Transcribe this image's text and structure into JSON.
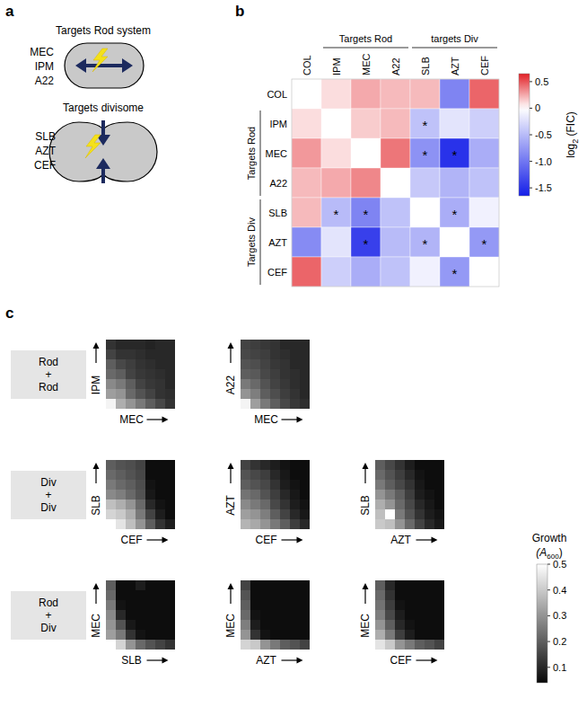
{
  "panel_labels": [
    "a",
    "b",
    "c"
  ],
  "diagram": {
    "rod": {
      "title": "Targets Rod system",
      "drugs": [
        "MEC",
        "IPM",
        "A22"
      ]
    },
    "divisome": {
      "title": "Targets divisome",
      "drugs": [
        "SLB",
        "AZT",
        "CEF"
      ]
    }
  },
  "chart_data": [
    {
      "type": "heatmap",
      "drugs": [
        "COL",
        "IPM",
        "MEC",
        "A22",
        "SLB",
        "AZT",
        "CEF"
      ],
      "column_groups": [
        {
          "label": "Targets Rod",
          "members": [
            "IPM",
            "MEC",
            "A22"
          ]
        },
        {
          "label": "targets Div",
          "members": [
            "SLB",
            "AZT",
            "CEF"
          ]
        }
      ],
      "row_groups": [
        {
          "label": "Targets Rod",
          "members": [
            "IPM",
            "MEC",
            "A22"
          ]
        },
        {
          "label": "Targets Div",
          "members": [
            "SLB",
            "AZT",
            "CEF"
          ]
        }
      ],
      "cells": [
        [
          null,
          0.1,
          0.25,
          0.2,
          0.2,
          -0.9,
          0.45
        ],
        [
          0.1,
          null,
          0.15,
          0.2,
          -0.45,
          -0.2,
          -0.35
        ],
        [
          0.3,
          0.1,
          null,
          0.4,
          -0.8,
          -1.5,
          -0.6
        ],
        [
          0.2,
          0.25,
          0.35,
          null,
          -0.4,
          -0.55,
          -0.45
        ],
        [
          0.2,
          -0.5,
          -0.9,
          -0.45,
          null,
          -0.6,
          -0.1
        ],
        [
          -0.85,
          -0.2,
          -1.4,
          -0.5,
          -0.55,
          null,
          -0.75
        ],
        [
          0.45,
          -0.35,
          -0.6,
          -0.45,
          -0.1,
          -0.75,
          null
        ]
      ],
      "significant": [
        [
          false,
          false,
          false,
          false,
          false,
          false,
          false
        ],
        [
          false,
          false,
          false,
          false,
          true,
          false,
          false
        ],
        [
          false,
          false,
          false,
          false,
          true,
          true,
          false
        ],
        [
          false,
          false,
          false,
          false,
          false,
          false,
          false
        ],
        [
          false,
          true,
          true,
          false,
          false,
          true,
          false
        ],
        [
          false,
          false,
          true,
          false,
          true,
          false,
          true
        ],
        [
          false,
          false,
          false,
          false,
          false,
          true,
          false
        ]
      ],
      "significance_label": "*",
      "colorbar": {
        "label": "log",
        "label_sub": "2",
        "label_suffix": " (FIC)",
        "range": [
          -1.65,
          0.65
        ],
        "ticks": [
          0.5,
          0,
          -0.5,
          {
            "value": -1,
            "label": "-1.0"
          },
          -1.5
        ]
      }
    },
    {
      "type": "heatmap_grid",
      "groups": [
        {
          "lines": [
            "Rod",
            "+",
            "Rod"
          ],
          "panels": [
            {
              "x_label": "MEC",
              "y_label": "IPM",
              "cells": [
                [
                  0.12,
                  0.1,
                  0.1,
                  0.1,
                  0.09,
                  0.1,
                  0.1
                ],
                [
                  0.15,
                  0.12,
                  0.12,
                  0.11,
                  0.1,
                  0.1,
                  0.1
                ],
                [
                  0.2,
                  0.16,
                  0.14,
                  0.12,
                  0.11,
                  0.1,
                  0.1
                ],
                [
                  0.22,
                  0.2,
                  0.15,
                  0.13,
                  0.12,
                  0.11,
                  0.1
                ],
                [
                  0.28,
                  0.25,
                  0.2,
                  0.15,
                  0.13,
                  0.12,
                  0.1
                ],
                [
                  0.32,
                  0.3,
                  0.22,
                  0.18,
                  0.15,
                  0.12,
                  0.11
                ],
                [
                  0.48,
                  0.35,
                  0.3,
                  0.25,
                  0.2,
                  0.16,
                  0.12
                ]
              ]
            },
            {
              "x_label": "MEC",
              "y_label": "A22",
              "cells": [
                [
                  0.15,
                  0.14,
                  0.13,
                  0.12,
                  0.1,
                  0.1,
                  0.1
                ],
                [
                  0.16,
                  0.15,
                  0.14,
                  0.12,
                  0.11,
                  0.1,
                  0.1
                ],
                [
                  0.18,
                  0.17,
                  0.15,
                  0.13,
                  0.12,
                  0.1,
                  0.1
                ],
                [
                  0.2,
                  0.19,
                  0.16,
                  0.14,
                  0.12,
                  0.11,
                  0.1
                ],
                [
                  0.25,
                  0.22,
                  0.18,
                  0.15,
                  0.13,
                  0.11,
                  0.1
                ],
                [
                  0.3,
                  0.26,
                  0.2,
                  0.17,
                  0.14,
                  0.12,
                  0.1
                ],
                [
                  0.48,
                  0.32,
                  0.25,
                  0.2,
                  0.16,
                  0.13,
                  0.11
                ]
              ]
            }
          ]
        },
        {
          "lines": [
            "Div",
            "+",
            "Div"
          ],
          "panels": [
            {
              "x_label": "CEF",
              "y_label": "SLB",
              "cells": [
                [
                  0.2,
                  0.18,
                  0.17,
                  0.15,
                  0.05,
                  0.05,
                  0.05
                ],
                [
                  0.22,
                  0.2,
                  0.18,
                  0.16,
                  0.05,
                  0.05,
                  0.05
                ],
                [
                  0.25,
                  0.22,
                  0.2,
                  0.17,
                  0.06,
                  0.05,
                  0.05
                ],
                [
                  0.28,
                  0.26,
                  0.22,
                  0.18,
                  0.07,
                  0.05,
                  0.05
                ],
                [
                  0.38,
                  0.35,
                  0.3,
                  0.22,
                  0.1,
                  0.06,
                  0.05
                ],
                [
                  0.42,
                  0.4,
                  0.35,
                  0.25,
                  0.15,
                  0.08,
                  0.05
                ],
                [
                  0.5,
                  0.45,
                  0.38,
                  0.3,
                  0.2,
                  0.12,
                  0.08
                ]
              ]
            },
            {
              "x_label": "CEF",
              "y_label": "AZT",
              "cells": [
                [
                  0.15,
                  0.12,
                  0.1,
                  0.08,
                  0.06,
                  0.05,
                  0.05
                ],
                [
                  0.18,
                  0.16,
                  0.14,
                  0.1,
                  0.07,
                  0.05,
                  0.05
                ],
                [
                  0.2,
                  0.18,
                  0.16,
                  0.12,
                  0.08,
                  0.06,
                  0.05
                ],
                [
                  0.24,
                  0.22,
                  0.18,
                  0.14,
                  0.1,
                  0.07,
                  0.05
                ],
                [
                  0.28,
                  0.25,
                  0.22,
                  0.16,
                  0.12,
                  0.08,
                  0.06
                ],
                [
                  0.32,
                  0.3,
                  0.26,
                  0.2,
                  0.15,
                  0.1,
                  0.07
                ],
                [
                  0.36,
                  0.34,
                  0.3,
                  0.25,
                  0.2,
                  0.14,
                  0.1
                ]
              ]
            },
            {
              "x_label": "AZT",
              "y_label": "SLB",
              "cells": [
                [
                  0.2,
                  0.16,
                  0.12,
                  0.08,
                  0.05,
                  0.05,
                  0.05
                ],
                [
                  0.22,
                  0.18,
                  0.14,
                  0.1,
                  0.06,
                  0.05,
                  0.05
                ],
                [
                  0.25,
                  0.2,
                  0.16,
                  0.12,
                  0.07,
                  0.05,
                  0.05
                ],
                [
                  0.3,
                  0.25,
                  0.2,
                  0.14,
                  0.08,
                  0.06,
                  0.05
                ],
                [
                  0.35,
                  0.3,
                  0.22,
                  0.16,
                  0.1,
                  0.07,
                  0.05
                ],
                [
                  0.38,
                  0.5,
                  0.25,
                  0.18,
                  0.12,
                  0.08,
                  0.06
                ],
                [
                  0.4,
                  0.38,
                  0.3,
                  0.22,
                  0.15,
                  0.1,
                  0.07
                ]
              ]
            }
          ]
        },
        {
          "lines": [
            "Rod",
            "+",
            "Div"
          ],
          "panels": [
            {
              "x_label": "SLB",
              "y_label": "MEC",
              "cells": [
                [
                  0.2,
                  0.05,
                  0.05,
                  0.08,
                  0.05,
                  0.05,
                  0.05
                ],
                [
                  0.22,
                  0.05,
                  0.05,
                  0.05,
                  0.05,
                  0.05,
                  0.05
                ],
                [
                  0.25,
                  0.06,
                  0.05,
                  0.05,
                  0.05,
                  0.05,
                  0.05
                ],
                [
                  0.28,
                  0.1,
                  0.05,
                  0.05,
                  0.05,
                  0.05,
                  0.05
                ],
                [
                  0.3,
                  0.18,
                  0.07,
                  0.05,
                  0.05,
                  0.05,
                  0.05
                ],
                [
                  0.32,
                  0.25,
                  0.12,
                  0.06,
                  0.05,
                  0.05,
                  0.05
                ],
                [
                  0.5,
                  0.42,
                  0.3,
                  0.22,
                  0.18,
                  0.15,
                  0.12
                ]
              ]
            },
            {
              "x_label": "AZT",
              "y_label": "MEC",
              "cells": [
                [
                  0.15,
                  0.05,
                  0.05,
                  0.05,
                  0.05,
                  0.05,
                  0.05
                ],
                [
                  0.18,
                  0.05,
                  0.05,
                  0.05,
                  0.05,
                  0.05,
                  0.05
                ],
                [
                  0.2,
                  0.05,
                  0.05,
                  0.05,
                  0.05,
                  0.05,
                  0.05
                ],
                [
                  0.22,
                  0.06,
                  0.05,
                  0.05,
                  0.05,
                  0.05,
                  0.05
                ],
                [
                  0.26,
                  0.08,
                  0.05,
                  0.05,
                  0.05,
                  0.05,
                  0.05
                ],
                [
                  0.3,
                  0.12,
                  0.06,
                  0.05,
                  0.05,
                  0.05,
                  0.05
                ],
                [
                  0.42,
                  0.4,
                  0.3,
                  0.25,
                  0.2,
                  0.18,
                  0.15
                ]
              ]
            },
            {
              "x_label": "CEF",
              "y_label": "MEC",
              "cells": [
                [
                  0.2,
                  0.1,
                  0.05,
                  0.05,
                  0.05,
                  0.05,
                  0.05
                ],
                [
                  0.22,
                  0.12,
                  0.05,
                  0.05,
                  0.05,
                  0.05,
                  0.05
                ],
                [
                  0.24,
                  0.14,
                  0.06,
                  0.05,
                  0.05,
                  0.05,
                  0.05
                ],
                [
                  0.26,
                  0.16,
                  0.08,
                  0.05,
                  0.05,
                  0.05,
                  0.05
                ],
                [
                  0.3,
                  0.2,
                  0.1,
                  0.06,
                  0.05,
                  0.05,
                  0.05
                ],
                [
                  0.35,
                  0.25,
                  0.14,
                  0.08,
                  0.05,
                  0.05,
                  0.05
                ],
                [
                  0.45,
                  0.4,
                  0.3,
                  0.25,
                  0.2,
                  0.18,
                  0.15
                ]
              ]
            }
          ]
        }
      ],
      "colorbar": {
        "label": "Growth",
        "unit_open": "(A",
        "unit_sub": "600",
        "unit_close": ")",
        "range": [
          0.04,
          0.5
        ],
        "ticks": [
          0.5,
          0.4,
          0.3,
          0.2,
          0.1
        ]
      }
    }
  ]
}
